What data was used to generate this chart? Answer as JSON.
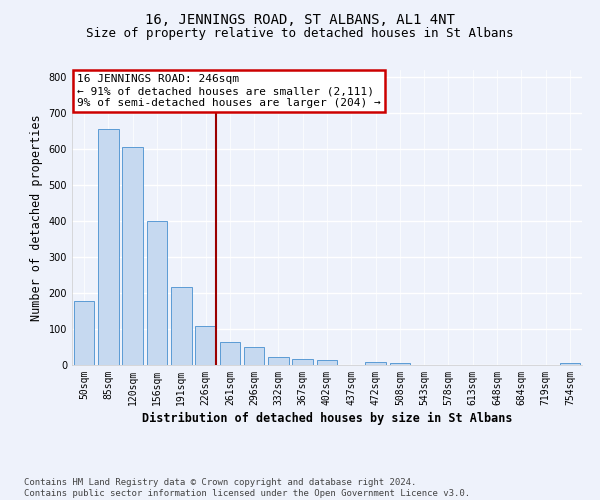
{
  "title": "16, JENNINGS ROAD, ST ALBANS, AL1 4NT",
  "subtitle": "Size of property relative to detached houses in St Albans",
  "xlabel": "Distribution of detached houses by size in St Albans",
  "ylabel": "Number of detached properties",
  "bar_labels": [
    "50sqm",
    "85sqm",
    "120sqm",
    "156sqm",
    "191sqm",
    "226sqm",
    "261sqm",
    "296sqm",
    "332sqm",
    "367sqm",
    "402sqm",
    "437sqm",
    "472sqm",
    "508sqm",
    "543sqm",
    "578sqm",
    "613sqm",
    "648sqm",
    "684sqm",
    "719sqm",
    "754sqm"
  ],
  "bar_values": [
    178,
    655,
    607,
    400,
    218,
    108,
    63,
    50,
    21,
    17,
    14,
    0,
    9,
    6,
    0,
    0,
    0,
    0,
    0,
    0,
    6
  ],
  "bar_color": "#c6d9f0",
  "bar_edge_color": "#5b9bd5",
  "vline_x": 5.42,
  "vline_color": "#9b0000",
  "annotation_line1": "16 JENNINGS ROAD: 246sqm",
  "annotation_line2": "← 91% of detached houses are smaller (2,111)",
  "annotation_line3": "9% of semi-detached houses are larger (204) →",
  "annotation_box_color": "#ffffff",
  "annotation_box_edge_color": "#cc0000",
  "ylim": [
    0,
    820
  ],
  "yticks": [
    0,
    100,
    200,
    300,
    400,
    500,
    600,
    700,
    800
  ],
  "background_color": "#eef2fb",
  "grid_color": "#ffffff",
  "footer": "Contains HM Land Registry data © Crown copyright and database right 2024.\nContains public sector information licensed under the Open Government Licence v3.0.",
  "title_fontsize": 10,
  "subtitle_fontsize": 9,
  "axis_label_fontsize": 8.5,
  "tick_fontsize": 7,
  "annotation_fontsize": 8,
  "footer_fontsize": 6.5
}
